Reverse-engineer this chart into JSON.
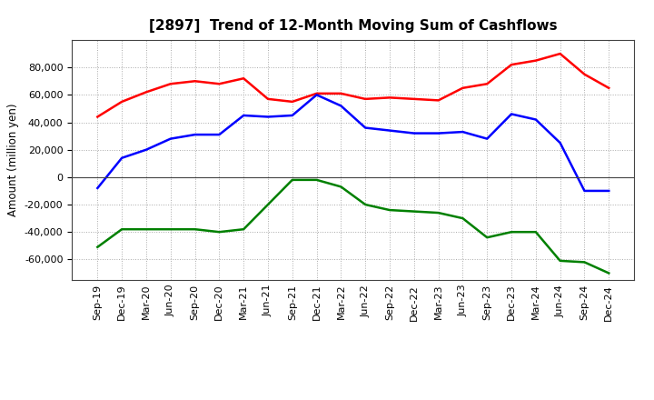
{
  "title": "[2897]  Trend of 12-Month Moving Sum of Cashflows",
  "ylabel": "Amount (million yen)",
  "x_labels": [
    "Sep-19",
    "Dec-19",
    "Mar-20",
    "Jun-20",
    "Sep-20",
    "Dec-20",
    "Mar-21",
    "Jun-21",
    "Sep-21",
    "Dec-21",
    "Mar-22",
    "Jun-22",
    "Sep-22",
    "Dec-22",
    "Mar-23",
    "Jun-23",
    "Sep-23",
    "Dec-23",
    "Mar-24",
    "Jun-24",
    "Sep-24",
    "Dec-24"
  ],
  "operating": [
    44000,
    55000,
    62000,
    68000,
    70000,
    68000,
    72000,
    57000,
    55000,
    61000,
    61000,
    57000,
    58000,
    57000,
    56000,
    65000,
    68000,
    82000,
    85000,
    90000,
    75000,
    65000
  ],
  "investing": [
    -51000,
    -38000,
    -38000,
    -38000,
    -38000,
    -40000,
    -38000,
    -20000,
    -2000,
    -2000,
    -7000,
    -20000,
    -24000,
    -25000,
    -26000,
    -30000,
    -44000,
    -40000,
    -40000,
    -61000,
    -62000,
    -70000
  ],
  "free": [
    -8000,
    14000,
    20000,
    28000,
    31000,
    31000,
    45000,
    44000,
    45000,
    60000,
    52000,
    36000,
    34000,
    32000,
    32000,
    33000,
    28000,
    46000,
    42000,
    25000,
    -10000,
    -10000
  ],
  "operating_color": "#ff0000",
  "investing_color": "#008000",
  "free_color": "#0000ff",
  "ylim": [
    -75000,
    100000
  ],
  "yticks": [
    -60000,
    -40000,
    -20000,
    0,
    20000,
    40000,
    60000,
    80000
  ],
  "grid_color": "#aaaaaa",
  "bg_color": "#ffffff",
  "line_width": 1.8,
  "title_fontsize": 11,
  "legend_fontsize": 9,
  "tick_fontsize": 8
}
